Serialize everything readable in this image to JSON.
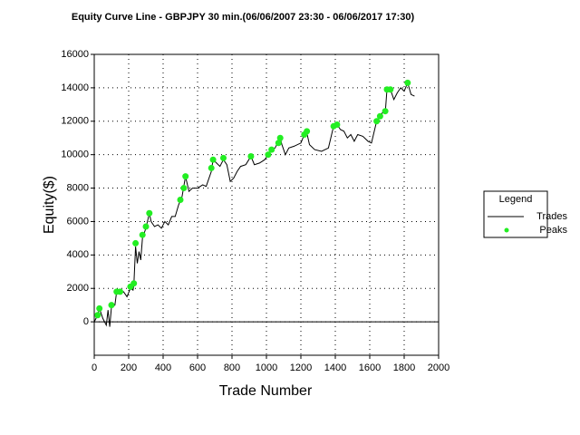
{
  "chart_data": {
    "type": "line",
    "title": "Equity Curve Line - GBPJPY 30 min.(06/06/2007 23:30 - 06/06/2017 17:30)",
    "x_label": "Trade Number",
    "y_label": "Equity($)",
    "xlim": [
      0,
      2000
    ],
    "xticks": [
      0,
      200,
      400,
      600,
      800,
      1000,
      1200,
      1400,
      1600,
      1800,
      2000
    ],
    "ylim": [
      -2000,
      16000
    ],
    "yticks": [
      0,
      2000,
      4000,
      6000,
      8000,
      10000,
      12000,
      14000,
      16000
    ],
    "grid": true,
    "legend_title": "Legend",
    "legend": "right",
    "series": [
      {
        "name": "Trades",
        "color": "#000000",
        "x": [
          0,
          20,
          30,
          50,
          70,
          80,
          90,
          100,
          120,
          130,
          150,
          170,
          190,
          210,
          225,
          230,
          240,
          250,
          260,
          270,
          280,
          300,
          320,
          330,
          350,
          370,
          390,
          410,
          430,
          450,
          470,
          490,
          510,
          530,
          550,
          570,
          600,
          630,
          650,
          680,
          690,
          710,
          730,
          750,
          770,
          790,
          810,
          830,
          850,
          880,
          910,
          930,
          960,
          990,
          1010,
          1030,
          1050,
          1080,
          1090,
          1110,
          1130,
          1160,
          1200,
          1220,
          1235,
          1250,
          1280,
          1320,
          1360,
          1390,
          1410,
          1430,
          1450,
          1470,
          1490,
          1510,
          1530,
          1560,
          1590,
          1610,
          1640,
          1660,
          1680,
          1690,
          1700,
          1720,
          1740,
          1760,
          1780,
          1800,
          1820,
          1840,
          1860
        ],
        "values": [
          0,
          400,
          800,
          200,
          -200,
          700,
          -300,
          900,
          1000,
          1800,
          1700,
          1800,
          1500,
          2000,
          1900,
          2200,
          4500,
          3500,
          4200,
          3700,
          5000,
          5600,
          6500,
          6000,
          5700,
          5800,
          5600,
          6000,
          5800,
          6300,
          6300,
          7000,
          7500,
          8700,
          7800,
          8000,
          8000,
          8200,
          8100,
          9000,
          9700,
          9500,
          9300,
          9700,
          9400,
          8400,
          8600,
          9000,
          9300,
          9400,
          9900,
          9400,
          9500,
          9700,
          10000,
          10300,
          10400,
          11000,
          10600,
          10000,
          10400,
          10500,
          10700,
          11200,
          11300,
          10600,
          10300,
          10200,
          10400,
          11700,
          11800,
          11500,
          11400,
          11000,
          11200,
          10800,
          11200,
          11100,
          10800,
          10700,
          12000,
          12300,
          12600,
          12500,
          13900,
          13900,
          13300,
          13700,
          14000,
          13800,
          14300,
          13600,
          13500
        ]
      },
      {
        "name": "Peaks",
        "color": "#22ee22",
        "marker": "circle",
        "x": [
          20,
          30,
          100,
          130,
          150,
          210,
          230,
          240,
          280,
          300,
          320,
          500,
          520,
          530,
          680,
          690,
          750,
          910,
          1010,
          1030,
          1070,
          1080,
          1220,
          1235,
          1390,
          1410,
          1640,
          1660,
          1690,
          1700,
          1720,
          1820
        ],
        "values": [
          400,
          800,
          1000,
          1800,
          1800,
          2100,
          2300,
          4700,
          5200,
          5700,
          6500,
          7300,
          8000,
          8700,
          9200,
          9700,
          9800,
          9900,
          10000,
          10300,
          10700,
          11000,
          11200,
          11400,
          11700,
          11800,
          12000,
          12300,
          12600,
          13900,
          13900,
          14300
        ]
      }
    ]
  }
}
